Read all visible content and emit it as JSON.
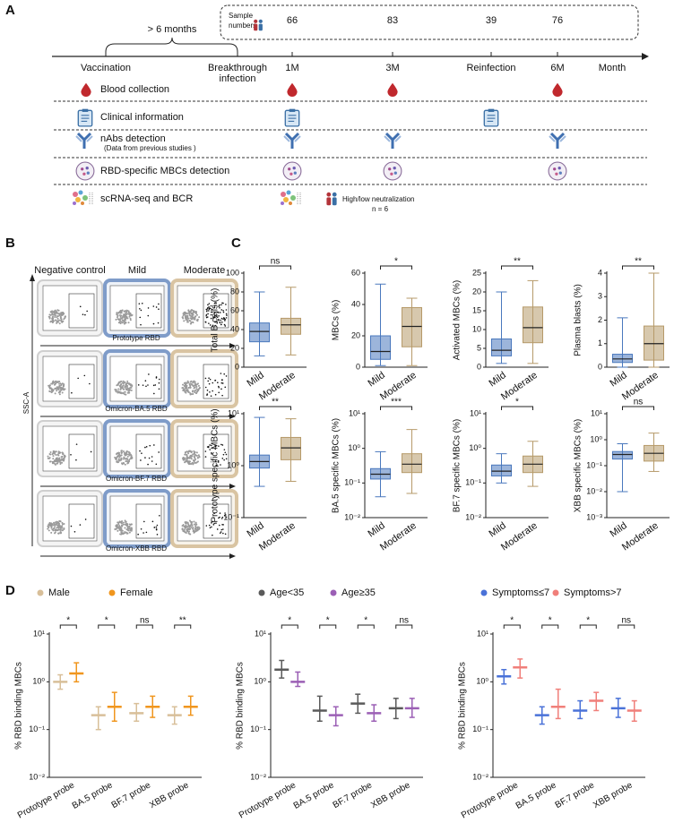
{
  "panel_labels": [
    "A",
    "B",
    "C",
    "D"
  ],
  "timeline": {
    "sample_label": [
      "Sample",
      "numbers"
    ],
    "sample_numbers": [
      66,
      83,
      39,
      76
    ],
    "interval": "> 6 months",
    "vaccination": "Vaccination",
    "breakthrough": [
      "Breakthrough",
      "infection"
    ],
    "points": [
      "1M",
      "3M",
      "Reinfection",
      "6M"
    ],
    "axis_label": "Month"
  },
  "rows": [
    "Blood collection",
    "Clinical information",
    "nAbs detection",
    "RBD-specific MBCs detection",
    "scRNA-seq and BCR"
  ],
  "rows_note": "(Data from previous studies )",
  "scrna_note": "High/low neutralization",
  "scrna_n": "n = 6",
  "flow": {
    "columns": [
      "Negative control",
      "Mild",
      "Moderate"
    ],
    "y_label": "SSC-A",
    "rows": [
      "Prototype RBD",
      "Omicron-BA.5 RBD",
      "Omicron-BF.7 RBD",
      "Omicron-XBB RBD"
    ]
  },
  "chart_data": [
    {
      "type": "box",
      "y_label": "Total B cells (%)",
      "categories": [
        "Mild",
        "Moderate"
      ],
      "colors": [
        "#4a78bd",
        "#b69a6a"
      ],
      "box": [
        {
          "min": 12,
          "q1": 27,
          "median": 38,
          "q3": 47,
          "max": 80
        },
        {
          "min": 13,
          "q1": 35,
          "median": 45,
          "q3": 52,
          "max": 85
        }
      ],
      "ylim": [
        0,
        100
      ],
      "yticks": [
        0,
        20,
        40,
        60,
        80,
        100
      ],
      "log": false,
      "significance": "ns"
    },
    {
      "type": "box",
      "y_label": "MBCs (%)",
      "categories": [
        "Mild",
        "Moderate"
      ],
      "colors": [
        "#4a78bd",
        "#b69a6a"
      ],
      "box": [
        {
          "min": 1,
          "q1": 5,
          "median": 10,
          "q3": 20,
          "max": 53
        },
        {
          "min": 1,
          "q1": 13,
          "median": 26,
          "q3": 38,
          "max": 44
        }
      ],
      "ylim": [
        0,
        60
      ],
      "yticks": [
        0,
        20,
        40,
        60
      ],
      "log": false,
      "significance": "*"
    },
    {
      "type": "box",
      "y_label": "Activated MBCs (%)",
      "categories": [
        "Mild",
        "Moderate"
      ],
      "colors": [
        "#4a78bd",
        "#b69a6a"
      ],
      "box": [
        {
          "min": 1,
          "q1": 3,
          "median": 4.5,
          "q3": 7.5,
          "max": 20
        },
        {
          "min": 1,
          "q1": 6.5,
          "median": 10.5,
          "q3": 16,
          "max": 23
        }
      ],
      "ylim": [
        0,
        25
      ],
      "yticks": [
        0,
        5,
        10,
        15,
        20,
        25
      ],
      "log": false,
      "significance": "**"
    },
    {
      "type": "box",
      "y_label": "Plasma blasts (%)",
      "categories": [
        "Mild",
        "Moderate"
      ],
      "colors": [
        "#4a78bd",
        "#b69a6a"
      ],
      "box": [
        {
          "min": 0,
          "q1": 0.2,
          "median": 0.35,
          "q3": 0.55,
          "max": 2.1
        },
        {
          "min": 0,
          "q1": 0.3,
          "median": 1,
          "q3": 1.75,
          "max": 4
        }
      ],
      "ylim": [
        0,
        4
      ],
      "yticks": [
        0,
        1,
        2,
        3,
        4
      ],
      "log": false,
      "significance": "**"
    },
    {
      "type": "box",
      "y_label": "Prototype specific MBCs (%)",
      "categories": [
        "Mild",
        "Moderate"
      ],
      "colors": [
        "#4a78bd",
        "#b69a6a"
      ],
      "box": [
        {
          "min": 0.4,
          "q1": 0.9,
          "median": 1.2,
          "q3": 1.6,
          "max": 8.5
        },
        {
          "min": 0.5,
          "q1": 1.3,
          "median": 2.2,
          "q3": 3.5,
          "max": 8
        }
      ],
      "ylim": [
        0.1,
        10
      ],
      "yticks": [
        {
          "value": 0.1,
          "label": "10⁻¹"
        },
        {
          "value": 1,
          "label": "10⁰"
        },
        {
          "value": 10,
          "label": "10¹"
        }
      ],
      "log": true,
      "significance": "**"
    },
    {
      "type": "box",
      "y_label": "BA.5 specific MBCs (%)",
      "categories": [
        "Mild",
        "Moderate"
      ],
      "colors": [
        "#4a78bd",
        "#b69a6a"
      ],
      "box": [
        {
          "min": 0.04,
          "q1": 0.13,
          "median": 0.18,
          "q3": 0.26,
          "max": 0.8
        },
        {
          "min": 0.05,
          "q1": 0.2,
          "median": 0.35,
          "q3": 0.7,
          "max": 3.5
        }
      ],
      "ylim": [
        0.01,
        10
      ],
      "yticks": [
        {
          "value": 0.01,
          "label": "10⁻²"
        },
        {
          "value": 0.1,
          "label": "10⁻¹"
        },
        {
          "value": 1,
          "label": "10⁰"
        },
        {
          "value": 10,
          "label": "10¹"
        }
      ],
      "log": true,
      "significance": "***"
    },
    {
      "type": "box",
      "y_label": "BF.7 specific MBCs (%)",
      "categories": [
        "Mild",
        "Moderate"
      ],
      "colors": [
        "#4a78bd",
        "#b69a6a"
      ],
      "box": [
        {
          "min": 0.1,
          "q1": 0.16,
          "median": 0.22,
          "q3": 0.33,
          "max": 0.7
        },
        {
          "min": 0.08,
          "q1": 0.2,
          "median": 0.35,
          "q3": 0.6,
          "max": 1.6
        }
      ],
      "ylim": [
        0.01,
        10
      ],
      "yticks": [
        {
          "value": 0.01,
          "label": "10⁻²"
        },
        {
          "value": 0.1,
          "label": "10⁻¹"
        },
        {
          "value": 1,
          "label": "10⁰"
        },
        {
          "value": 10,
          "label": "10¹"
        }
      ],
      "log": true,
      "significance": "*"
    },
    {
      "type": "box",
      "y_label": "XBB specific MBCs (%)",
      "categories": [
        "Mild",
        "Moderate"
      ],
      "colors": [
        "#4a78bd",
        "#b69a6a"
      ],
      "box": [
        {
          "min": 0.01,
          "q1": 0.18,
          "median": 0.27,
          "q3": 0.35,
          "max": 0.7
        },
        {
          "min": 0.06,
          "q1": 0.15,
          "median": 0.3,
          "q3": 0.6,
          "max": 1.8
        }
      ],
      "ylim": [
        0.001,
        10
      ],
      "yticks": [
        {
          "value": 0.001,
          "label": "10⁻³"
        },
        {
          "value": 0.01,
          "label": "10⁻²"
        },
        {
          "value": 0.1,
          "label": "10⁻¹"
        },
        {
          "value": 1,
          "label": "10⁰"
        },
        {
          "value": 10,
          "label": "10¹"
        }
      ],
      "log": true,
      "significance": "ns"
    },
    {
      "type": "dot",
      "y_label": "% RBD binding MBCs",
      "categories": [
        "Prototype probe",
        "BA.5 probe",
        "BF.7 probe",
        "XBB probe"
      ],
      "series": [
        {
          "name": "Male",
          "color": "#d8bf99",
          "values": [
            1.0,
            0.2,
            0.22,
            0.2
          ],
          "q1": [
            0.7,
            0.1,
            0.15,
            0.13
          ],
          "q3": [
            1.4,
            0.3,
            0.35,
            0.3
          ]
        },
        {
          "name": "Female",
          "color": "#f0961e",
          "values": [
            1.5,
            0.3,
            0.3,
            0.3
          ],
          "q1": [
            1.0,
            0.15,
            0.18,
            0.2
          ],
          "q3": [
            2.5,
            0.6,
            0.5,
            0.5
          ]
        }
      ],
      "significance": [
        "*",
        "*",
        "ns",
        "**"
      ],
      "ylim": [
        0.01,
        10
      ],
      "yticks": [
        {
          "value": 0.01,
          "label": "10⁻²"
        },
        {
          "value": 0.1,
          "label": "10⁻¹"
        },
        {
          "value": 1,
          "label": "10⁰"
        },
        {
          "value": 10,
          "label": "10¹"
        }
      ],
      "log": true,
      "legend": "top"
    },
    {
      "type": "dot",
      "y_label": "% RBD binding MBCs",
      "categories": [
        "Prototype probe",
        "BA.5 probe",
        "BF.7 probe",
        "XBB probe"
      ],
      "series": [
        {
          "name": "Age<35",
          "color": "#5a5a5a",
          "values": [
            1.8,
            0.25,
            0.35,
            0.28
          ],
          "q1": [
            1.2,
            0.15,
            0.22,
            0.17
          ],
          "q3": [
            2.8,
            0.5,
            0.55,
            0.45
          ]
        },
        {
          "name": "Age≥35",
          "color": "#9b5fb5",
          "values": [
            1.0,
            0.2,
            0.22,
            0.28
          ],
          "q1": [
            0.8,
            0.12,
            0.15,
            0.18
          ],
          "q3": [
            1.6,
            0.3,
            0.33,
            0.45
          ]
        }
      ],
      "significance": [
        "*",
        "*",
        "*",
        "ns"
      ],
      "ylim": [
        0.01,
        10
      ],
      "yticks": [
        {
          "value": 0.01,
          "label": "10⁻²"
        },
        {
          "value": 0.1,
          "label": "10⁻¹"
        },
        {
          "value": 1,
          "label": "10⁰"
        },
        {
          "value": 10,
          "label": "10¹"
        }
      ],
      "log": true,
      "legend": "top"
    },
    {
      "type": "dot",
      "y_label": "% RBD binding MBCs",
      "categories": [
        "Prototype probe",
        "BA.5 probe",
        "BF.7 probe",
        "XBB probe"
      ],
      "series": [
        {
          "name": "Symptoms≤7",
          "color": "#4a72d8",
          "values": [
            1.3,
            0.2,
            0.25,
            0.28
          ],
          "q1": [
            0.9,
            0.13,
            0.17,
            0.18
          ],
          "q3": [
            1.8,
            0.3,
            0.4,
            0.45
          ]
        },
        {
          "name": "Symptoms>7",
          "color": "#f07f7a",
          "values": [
            2.0,
            0.3,
            0.4,
            0.25
          ],
          "q1": [
            1.2,
            0.17,
            0.25,
            0.15
          ],
          "q3": [
            3.0,
            0.7,
            0.6,
            0.4
          ]
        }
      ],
      "significance": [
        "*",
        "*",
        "*",
        "ns"
      ],
      "ylim": [
        0.01,
        10
      ],
      "yticks": [
        {
          "value": 0.01,
          "label": "10⁻²"
        },
        {
          "value": 0.1,
          "label": "10⁻¹"
        },
        {
          "value": 1,
          "label": "10⁰"
        },
        {
          "value": 10,
          "label": "10¹"
        }
      ],
      "log": true,
      "legend": "top"
    }
  ]
}
